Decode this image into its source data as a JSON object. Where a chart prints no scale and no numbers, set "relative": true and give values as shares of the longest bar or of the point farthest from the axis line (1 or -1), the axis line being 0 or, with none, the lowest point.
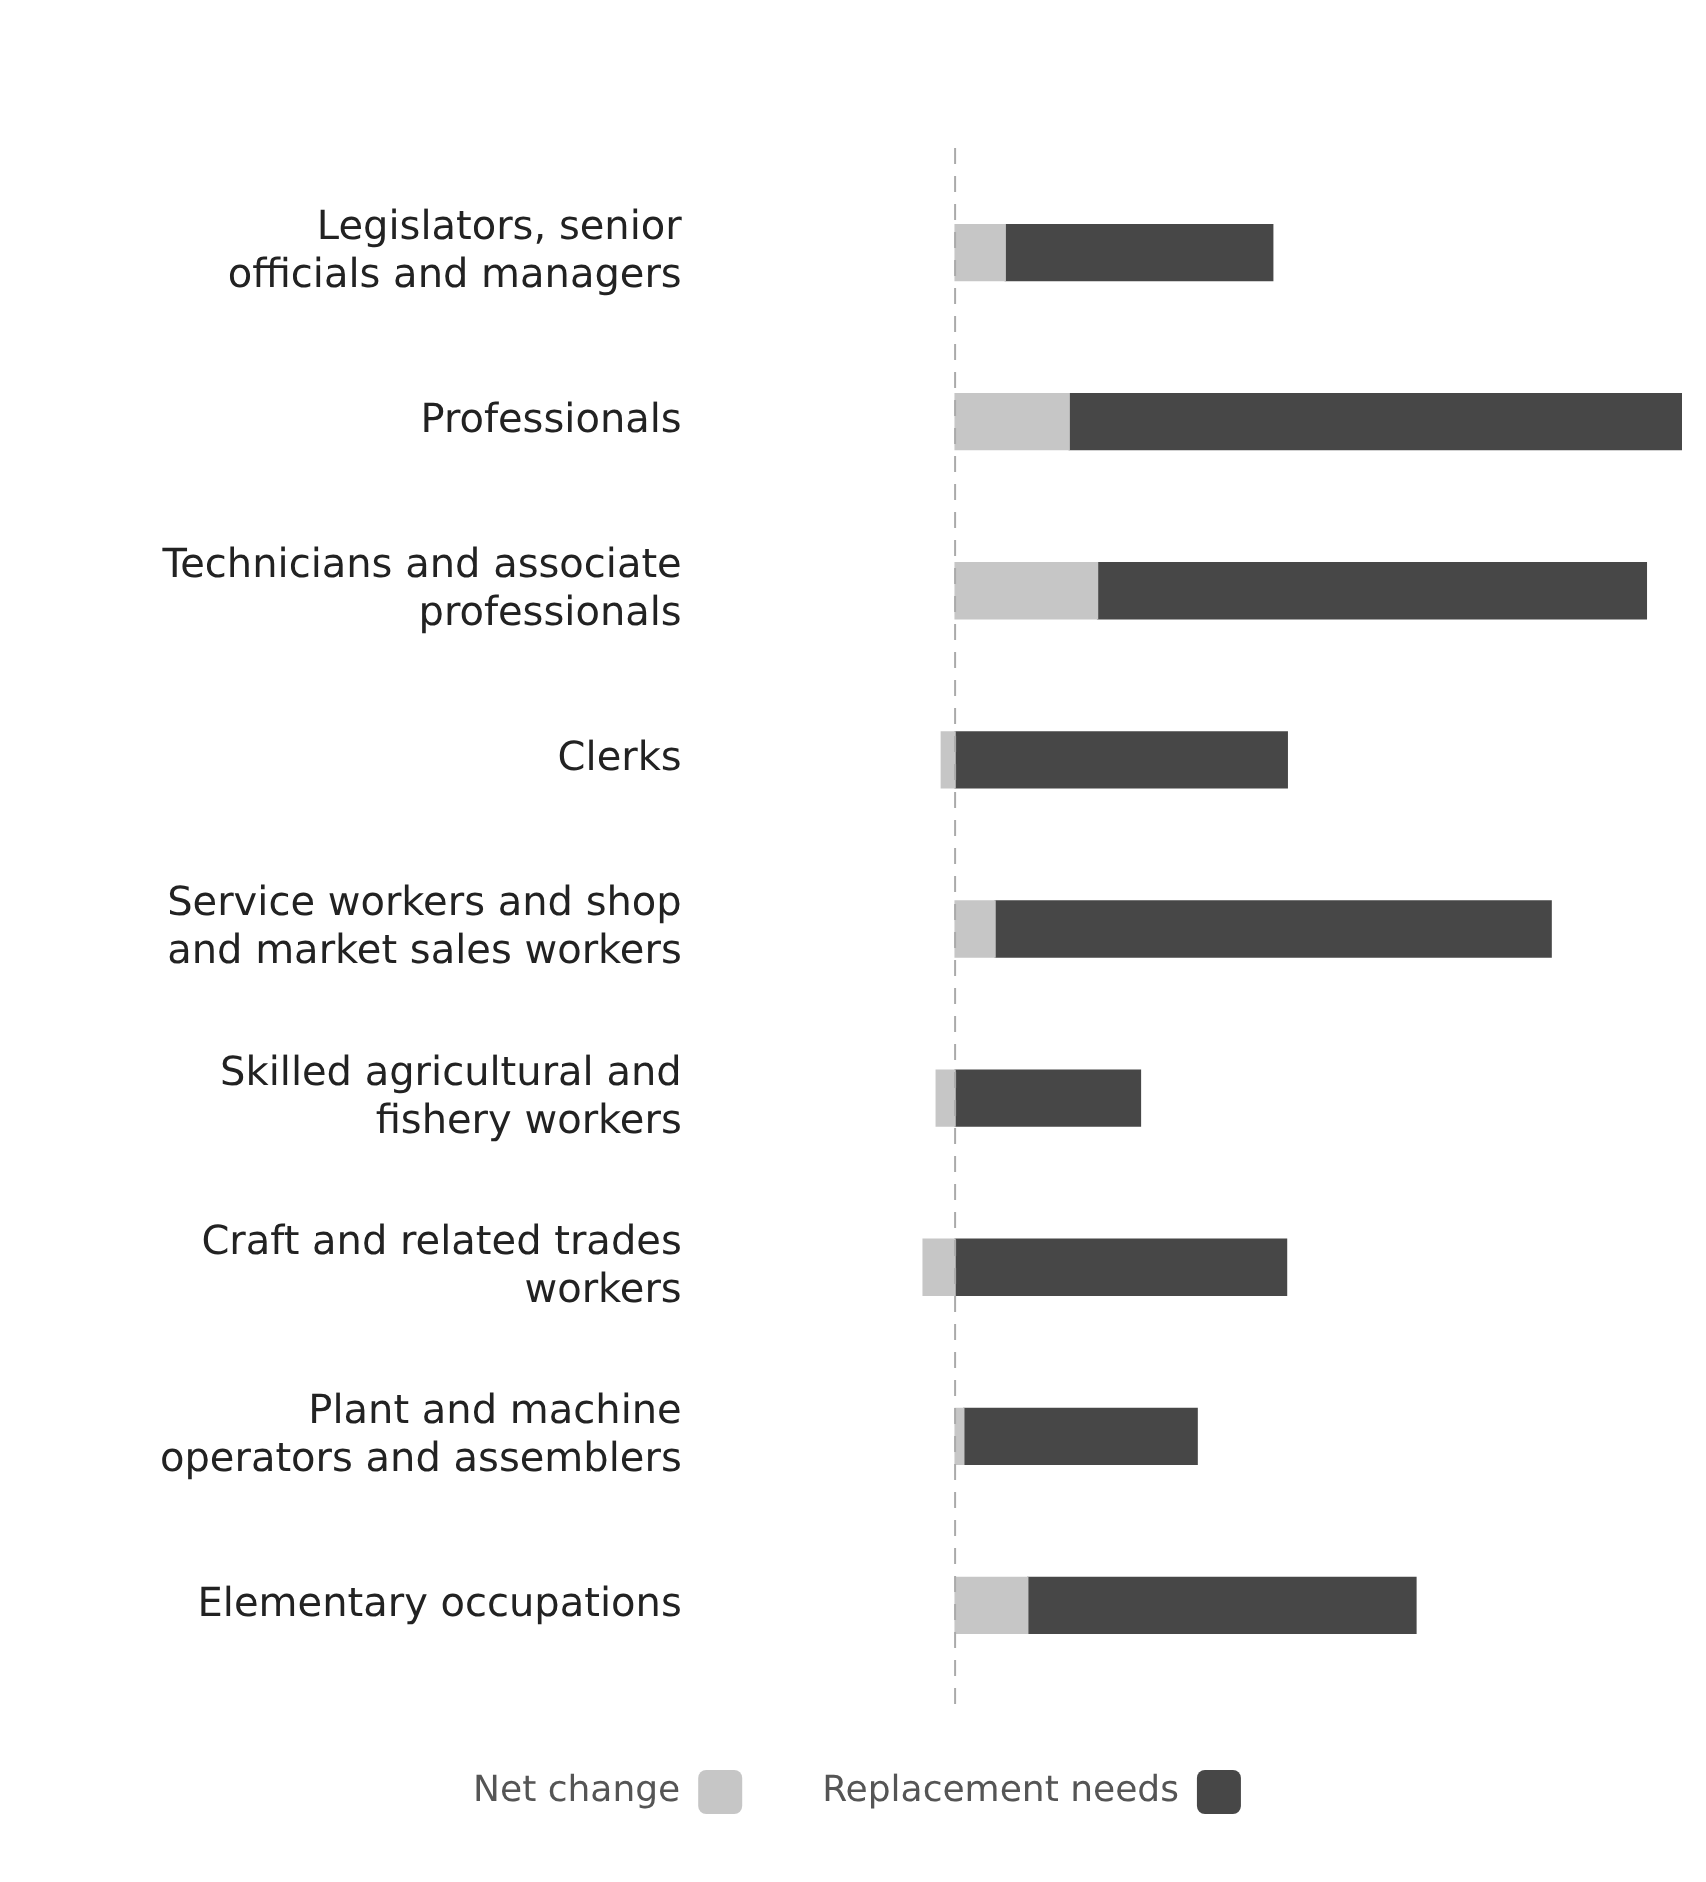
{
  "chart_data": {
    "type": "bar",
    "orientation": "horizontal",
    "stacked": true,
    "relative": true,
    "categories": [
      "Legislators, senior officials and managers",
      "Professionals",
      "Technicians and associate professionals",
      "Clerks",
      "Service workers and shop and market sales workers",
      "Skilled agricultural and fishery workers",
      "Craft and related trades workers",
      "Plant and machine operators and assemblers",
      "Elementary occupations"
    ],
    "series": [
      {
        "name": "Net change",
        "color": "#c6c6c6",
        "values": [
          0.069,
          0.157,
          0.196,
          -0.019,
          0.055,
          -0.026,
          -0.044,
          0.012,
          0.1
        ]
      },
      {
        "name": "Replacement needs",
        "color": "#474747",
        "values": [
          0.368,
          0.843,
          0.755,
          0.457,
          0.765,
          0.255,
          0.456,
          0.321,
          0.534
        ]
      }
    ],
    "ref_lines": [
      {
        "axis": "x",
        "value": 0,
        "line_style": "dashed",
        "color": "#aaaaaa"
      }
    ],
    "legend": "bottom",
    "grid": false
  }
}
